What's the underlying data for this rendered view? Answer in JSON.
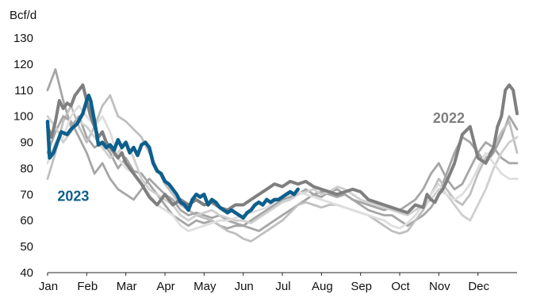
{
  "chart_data": {
    "type": "line",
    "unit_label": "Bcf/d",
    "title": "",
    "xlabel": "",
    "ylabel": "Bcf/d",
    "ylim": [
      40,
      130
    ],
    "yticks": [
      40,
      50,
      60,
      70,
      80,
      90,
      100,
      110,
      120,
      130
    ],
    "xlim": [
      0,
      12
    ],
    "months": [
      "Jan",
      "Feb",
      "Mar",
      "Apr",
      "May",
      "Jun",
      "Jul",
      "Aug",
      "Sep",
      "Oct",
      "Nov",
      "Dec"
    ],
    "grid": false,
    "legend": "none",
    "annotations": [
      {
        "text": "2023",
        "series": "2023",
        "x": 0.25,
        "y": 67.5
      },
      {
        "text": "2022",
        "series": "2022",
        "x": 9.85,
        "y": 97.5
      }
    ],
    "series": [
      {
        "name": "2023",
        "color": "#0d5f8c",
        "x": [
          0,
          0.05,
          0.15,
          0.25,
          0.35,
          0.5,
          0.6,
          0.75,
          0.9,
          1.0,
          1.05,
          1.1,
          1.2,
          1.3,
          1.4,
          1.5,
          1.6,
          1.7,
          1.8,
          1.9,
          2.0,
          2.1,
          2.2,
          2.3,
          2.4,
          2.5,
          2.6,
          2.7,
          2.8,
          2.9,
          3.0,
          3.1,
          3.2,
          3.3,
          3.4,
          3.5,
          3.6,
          3.7,
          3.8,
          3.9,
          4.0,
          4.1,
          4.2,
          4.3,
          4.4,
          4.5,
          4.6,
          4.7,
          4.8,
          4.9,
          5.0,
          5.1,
          5.2,
          5.3,
          5.4,
          5.5,
          5.6,
          5.7,
          5.8,
          5.9,
          6.0,
          6.1,
          6.2,
          6.3,
          6.4
        ],
        "y": [
          98,
          84,
          86,
          90,
          94,
          93,
          95,
          97,
          101,
          106,
          108,
          106,
          98,
          89,
          90,
          88,
          89,
          87,
          91,
          88,
          90,
          86,
          88,
          85,
          89,
          90,
          88,
          82,
          79,
          78,
          75,
          74,
          72,
          70,
          67,
          66,
          64,
          68,
          70,
          69,
          70,
          66,
          68,
          67,
          65,
          64,
          63,
          64,
          63,
          62,
          61,
          63,
          64,
          66,
          67,
          66,
          68,
          67,
          68,
          68,
          69,
          70,
          71,
          70,
          72
        ]
      },
      {
        "name": "2022",
        "color": "#7f7f7f",
        "x": [
          0,
          0.1,
          0.2,
          0.3,
          0.4,
          0.5,
          0.6,
          0.7,
          0.8,
          0.9,
          1.0,
          1.1,
          1.2,
          1.3,
          1.4,
          1.5,
          1.6,
          1.7,
          1.8,
          1.9,
          2.0,
          2.2,
          2.4,
          2.6,
          2.8,
          3.0,
          3.2,
          3.4,
          3.6,
          3.8,
          4.0,
          4.2,
          4.4,
          4.6,
          4.8,
          5.0,
          5.2,
          5.4,
          5.6,
          5.8,
          6.0,
          6.2,
          6.4,
          6.6,
          6.8,
          7.0,
          7.2,
          7.4,
          7.6,
          7.8,
          8.0,
          8.2,
          8.4,
          8.6,
          8.8,
          9.0,
          9.2,
          9.4,
          9.6,
          9.7,
          9.8,
          9.9,
          10.0,
          10.1,
          10.2,
          10.4,
          10.6,
          10.8,
          11.0,
          11.2,
          11.4,
          11.5,
          11.6,
          11.7,
          11.8,
          11.9,
          12.0
        ],
        "y": [
          96,
          92,
          98,
          106,
          103,
          105,
          104,
          108,
          110,
          112,
          106,
          100,
          96,
          92,
          94,
          90,
          88,
          86,
          84,
          86,
          82,
          78,
          74,
          69,
          66,
          70,
          66,
          68,
          66,
          68,
          66,
          67,
          65,
          64,
          66,
          66,
          68,
          70,
          72,
          74,
          73,
          75,
          74,
          75,
          73,
          72,
          71,
          70,
          71,
          72,
          71,
          68,
          67,
          66,
          65,
          64,
          63,
          66,
          65,
          70,
          68,
          67,
          70,
          72,
          75,
          82,
          93,
          96,
          84,
          82,
          88,
          96,
          100,
          110,
          112,
          110,
          101
        ]
      },
      {
        "name": "",
        "color": "#a6a6a6",
        "x": [
          0,
          0.2,
          0.4,
          0.6,
          0.8,
          1.0,
          1.2,
          1.4,
          1.6,
          1.8,
          2.0,
          2.2,
          2.4,
          2.6,
          2.8,
          3.0,
          3.2,
          3.4,
          3.6,
          3.8,
          4.0,
          4.2,
          4.4,
          4.6,
          4.8,
          5.0,
          5.2,
          5.4,
          5.6,
          5.8,
          6.0,
          6.2,
          6.4,
          6.6,
          6.8,
          7.0,
          7.2,
          7.4,
          7.6,
          7.8,
          8.0,
          8.2,
          8.4,
          8.6,
          8.8,
          9.0,
          9.2,
          9.4,
          9.6,
          9.8,
          10.0,
          10.2,
          10.4,
          10.6,
          10.8,
          11.0,
          11.2,
          11.4,
          11.6,
          11.8,
          12.0
        ],
        "y": [
          110,
          118,
          106,
          96,
          100,
          92,
          88,
          90,
          86,
          80,
          84,
          79,
          78,
          74,
          70,
          66,
          62,
          60,
          58,
          60,
          59,
          60,
          58,
          57,
          58,
          58,
          57,
          56,
          58,
          60,
          62,
          64,
          66,
          68,
          70,
          71,
          70,
          69,
          70,
          68,
          66,
          64,
          63,
          62,
          62,
          60,
          58,
          60,
          62,
          65,
          70,
          78,
          86,
          92,
          90,
          86,
          82,
          86,
          92,
          100,
          95
        ]
      },
      {
        "name": "",
        "color": "#bfbfbf",
        "x": [
          0,
          0.2,
          0.4,
          0.6,
          0.8,
          1.0,
          1.2,
          1.4,
          1.6,
          1.8,
          2.0,
          2.2,
          2.4,
          2.6,
          2.8,
          3.0,
          3.2,
          3.4,
          3.6,
          3.8,
          4.0,
          4.2,
          4.4,
          4.6,
          4.8,
          5.0,
          5.2,
          5.4,
          5.6,
          5.8,
          6.0,
          6.2,
          6.4,
          6.6,
          6.8,
          7.0,
          7.2,
          7.4,
          7.6,
          7.8,
          8.0,
          8.2,
          8.4,
          8.6,
          8.8,
          9.0,
          9.2,
          9.4,
          9.6,
          9.8,
          10.0,
          10.2,
          10.4,
          10.6,
          10.8,
          11.0,
          11.2,
          11.4,
          11.6,
          11.8,
          12.0
        ],
        "y": [
          76,
          86,
          98,
          104,
          96,
          90,
          96,
          104,
          108,
          100,
          98,
          95,
          92,
          86,
          80,
          74,
          70,
          66,
          64,
          62,
          61,
          60,
          58,
          56,
          55,
          53,
          52,
          54,
          56,
          58,
          60,
          63,
          66,
          67,
          66,
          65,
          66,
          66,
          65,
          64,
          63,
          62,
          60,
          58,
          56,
          55,
          56,
          60,
          64,
          70,
          76,
          72,
          68,
          66,
          70,
          78,
          84,
          88,
          94,
          98,
          86
        ]
      },
      {
        "name": "",
        "color": "#a6a6a6",
        "x": [
          0,
          0.2,
          0.4,
          0.6,
          0.8,
          1.0,
          1.2,
          1.4,
          1.6,
          1.8,
          2.0,
          2.2,
          2.4,
          2.6,
          2.8,
          3.0,
          3.2,
          3.4,
          3.6,
          3.8,
          4.0,
          4.2,
          4.4,
          4.6,
          4.8,
          5.0,
          5.2,
          5.4,
          5.6,
          5.8,
          6.0,
          6.2,
          6.4,
          6.6,
          6.8,
          7.0,
          7.2,
          7.4,
          7.6,
          7.8,
          8.0,
          8.2,
          8.4,
          8.6,
          8.8,
          9.0,
          9.2,
          9.4,
          9.6,
          9.8,
          10.0,
          10.2,
          10.4,
          10.6,
          10.8,
          11.0,
          11.2,
          11.4,
          11.6,
          11.8,
          12.0
        ],
        "y": [
          86,
          94,
          100,
          98,
          92,
          86,
          78,
          82,
          76,
          72,
          70,
          68,
          72,
          76,
          73,
          70,
          68,
          64,
          62,
          63,
          62,
          61,
          62,
          60,
          59,
          58,
          60,
          62,
          64,
          66,
          68,
          69,
          70,
          72,
          70,
          69,
          71,
          72,
          70,
          68,
          67,
          66,
          65,
          64,
          65,
          64,
          66,
          68,
          72,
          78,
          82,
          76,
          72,
          74,
          80,
          86,
          90,
          88,
          84,
          82,
          82
        ]
      },
      {
        "name": "",
        "color": "#cfcfcf",
        "x": [
          0,
          0.2,
          0.4,
          0.6,
          0.8,
          1.0,
          1.2,
          1.4,
          1.6,
          1.8,
          2.0,
          2.2,
          2.4,
          2.6,
          2.8,
          3.0,
          3.2,
          3.4,
          3.6,
          3.8,
          4.0,
          4.2,
          4.4,
          4.6,
          4.8,
          5.0,
          5.2,
          5.4,
          5.6,
          5.8,
          6.0,
          6.2,
          6.4,
          6.6,
          6.8,
          7.0,
          7.2,
          7.4,
          7.6,
          7.8,
          8.0,
          8.2,
          8.4,
          8.6,
          8.8,
          9.0,
          9.2,
          9.4,
          9.6,
          9.8,
          10.0,
          10.2,
          10.4,
          10.6,
          10.8,
          11.0,
          11.2,
          11.4,
          11.6,
          11.8,
          12.0
        ],
        "y": [
          100,
          96,
          90,
          94,
          98,
          96,
          92,
          88,
          84,
          86,
          90,
          84,
          76,
          72,
          70,
          68,
          66,
          62,
          60,
          62,
          63,
          64,
          62,
          61,
          60,
          60,
          59,
          61,
          63,
          65,
          67,
          68,
          70,
          71,
          72,
          70,
          71,
          73,
          72,
          70,
          68,
          67,
          66,
          65,
          64,
          63,
          62,
          64,
          66,
          68,
          72,
          70,
          66,
          62,
          60,
          66,
          72,
          80,
          86,
          90,
          92
        ]
      },
      {
        "name": "",
        "color": "#dedede",
        "x": [
          0,
          0.2,
          0.4,
          0.6,
          0.8,
          1.0,
          1.2,
          1.4,
          1.6,
          1.8,
          2.0,
          2.2,
          2.4,
          2.6,
          2.8,
          3.0,
          3.2,
          3.4,
          3.6,
          3.8,
          4.0,
          4.2,
          4.4,
          4.6,
          4.8,
          5.0,
          5.2,
          5.4,
          5.6,
          5.8,
          6.0,
          6.2,
          6.4,
          6.6,
          6.8,
          7.0,
          7.2,
          7.4,
          7.6,
          7.8,
          8.0,
          8.2,
          8.4,
          8.6,
          8.8,
          9.0,
          9.2,
          9.4,
          9.6,
          9.8,
          10.0,
          10.2,
          10.4,
          10.6,
          10.8,
          11.0,
          11.2,
          11.4,
          11.6,
          11.8,
          12.0
        ],
        "y": [
          82,
          90,
          92,
          100,
          104,
          100,
          96,
          100,
          94,
          84,
          80,
          78,
          74,
          70,
          66,
          64,
          62,
          58,
          56,
          57,
          58,
          59,
          60,
          60,
          61,
          62,
          63,
          64,
          65,
          67,
          69,
          70,
          71,
          70,
          69,
          68,
          67,
          66,
          65,
          64,
          63,
          62,
          61,
          60,
          58,
          57,
          59,
          62,
          66,
          70,
          74,
          70,
          68,
          70,
          74,
          80,
          86,
          82,
          78,
          76,
          76
        ]
      }
    ]
  }
}
